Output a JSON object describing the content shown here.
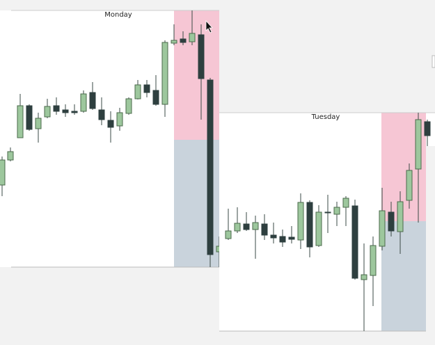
{
  "panels": [
    {
      "title": "Monday"
    },
    {
      "title": "Tuesday"
    }
  ]
}
